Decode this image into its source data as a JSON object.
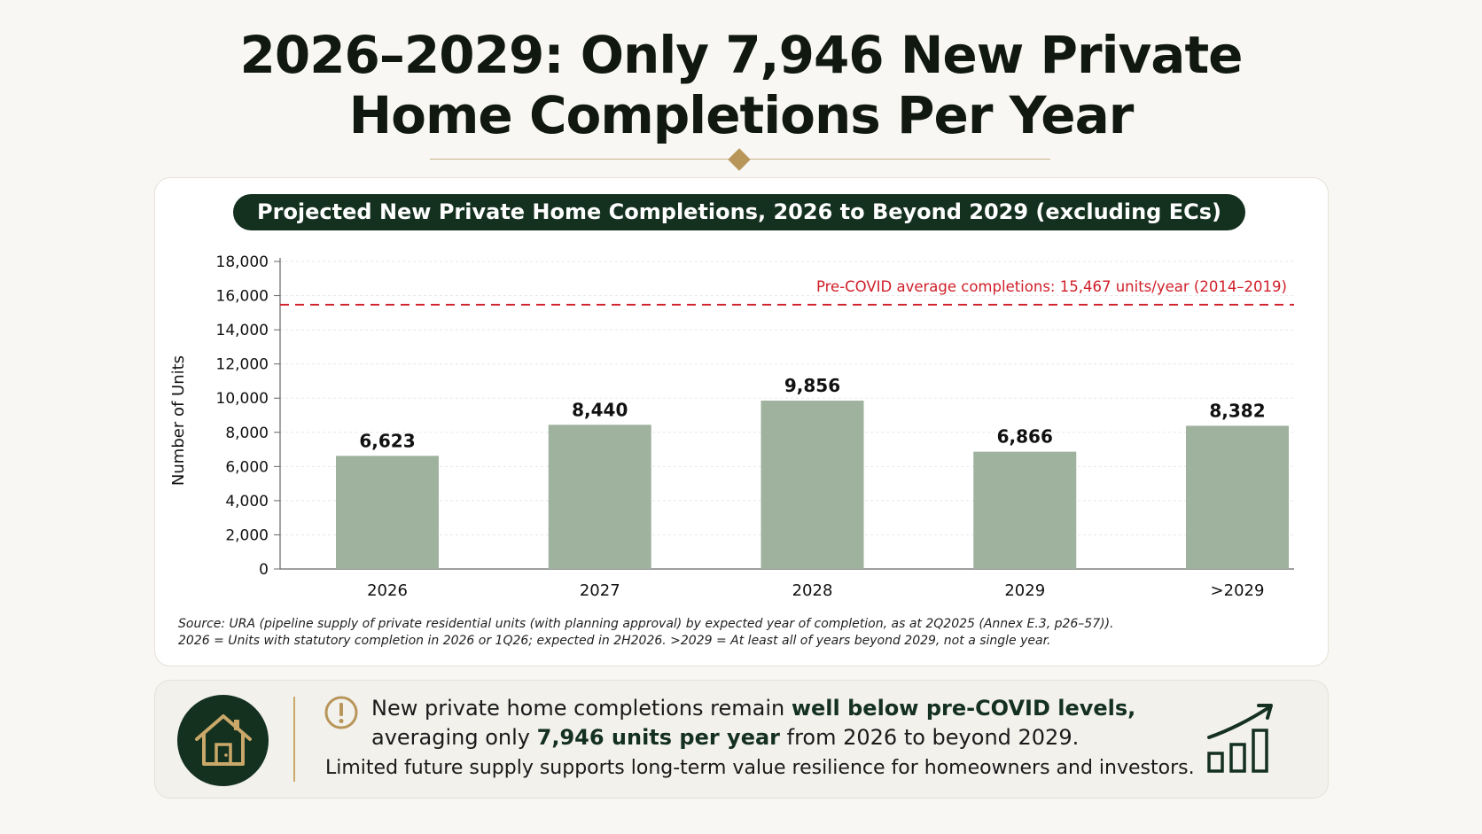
{
  "page": {
    "title_line1": "2026–2029: Only 7,946 New Private",
    "title_line2": "Home Completions Per Year"
  },
  "colors": {
    "bar": "#9fb29e",
    "banner": "#14301f",
    "reference_line": "#d0202a",
    "accent_gold": "#b8965a"
  },
  "chart_data": {
    "type": "bar",
    "title": "Projected New Private Home Completions, 2026 to Beyond 2029 (excluding ECs)",
    "ylabel": "Number of Units",
    "xlabel": "",
    "categories": [
      "2026",
      "2027",
      "2028",
      "2029",
      ">2029"
    ],
    "values": [
      6623,
      8440,
      9856,
      6866,
      8382
    ],
    "value_labels": [
      "6,623",
      "8,440",
      "9,856",
      "6,866",
      "8,382"
    ],
    "ylim": [
      0,
      18000
    ],
    "yticks": [
      0,
      2000,
      4000,
      6000,
      8000,
      10000,
      12000,
      14000,
      16000,
      18000
    ],
    "ytick_labels": [
      "0",
      "2,000",
      "4,000",
      "6,000",
      "8,000",
      "10,000",
      "12,000",
      "14,000",
      "16,000",
      "18,000"
    ],
    "grid": true,
    "reference_line": {
      "value": 15467,
      "label": "Pre-COVID average completions: 15,467 units/year (2014–2019)",
      "style": "dashed"
    }
  },
  "notes": {
    "source": "Source: URA (pipeline supply of private residential units (with planning approval) by expected year of completion, as at 2Q2025 (Annex E.3, p26–57)).",
    "definition": "2026 = Units with statutory completion in 2026 or 1Q26; expected in 2H2026.   >2029 = At least all of years beyond 2029, not a single year."
  },
  "callout": {
    "line1_pre": "New private home completions remain ",
    "line1_bold": "well below pre-COVID levels,",
    "line2_pre": "averaging only ",
    "line2_bold": "7,946 units per year",
    "line2_post": " from 2026 to beyond 2029.",
    "sub": "Limited future supply supports long-term value resilience for homeowners and investors.",
    "icons": [
      "house-icon",
      "alert-icon",
      "growth-chart-icon"
    ]
  }
}
